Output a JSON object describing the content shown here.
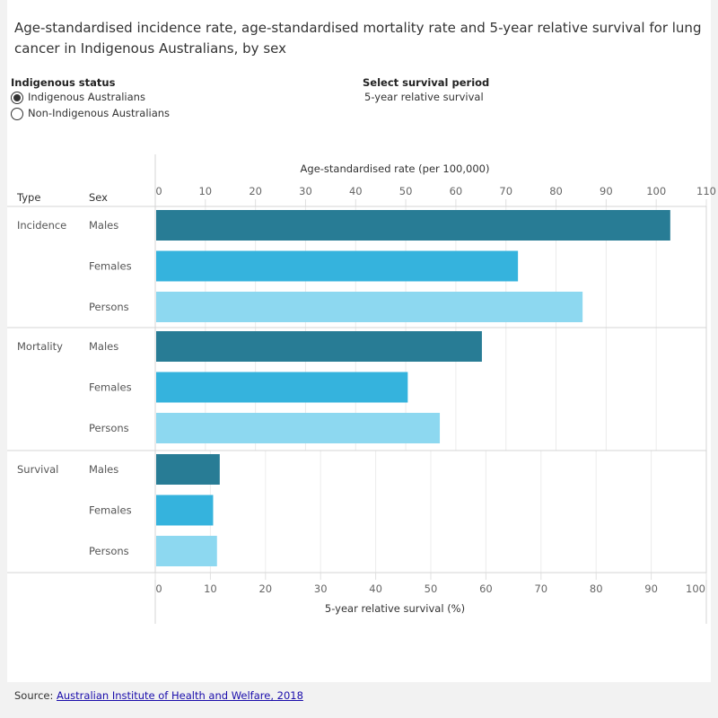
{
  "title": "Age-standardised incidence rate, age-standardised mortality rate and 5-year relative survival for lung cancer in Indigenous Australians, by sex",
  "filters": {
    "indigenous_status": {
      "label": "Indigenous status",
      "options": [
        "Indigenous Australians",
        "Non-Indigenous Australians"
      ],
      "selected": "Indigenous Australians"
    },
    "survival_period": {
      "label": "Select survival period",
      "value": "5-year relative survival"
    }
  },
  "source": {
    "prefix": "Source: ",
    "link": "Australian Institute of Health and Welfare, 2018"
  },
  "chart_data": {
    "type": "bar",
    "orientation": "horizontal",
    "row_headers": [
      "Type",
      "Sex"
    ],
    "colors": {
      "Males": "#287c95",
      "Females": "#35b3dd",
      "Persons": "#8dd8f0"
    },
    "grid": true,
    "panels": [
      {
        "type": "Incidence",
        "axis": "top",
        "categories": [
          "Males",
          "Females",
          "Persons"
        ],
        "values": [
          102.8,
          72.4,
          85.3
        ]
      },
      {
        "type": "Mortality",
        "axis": "top",
        "categories": [
          "Males",
          "Females",
          "Persons"
        ],
        "values": [
          65.2,
          50.4,
          56.8
        ]
      },
      {
        "type": "Survival",
        "axis": "bottom",
        "categories": [
          "Males",
          "Females",
          "Persons"
        ],
        "values": [
          11.7,
          10.5,
          11.2
        ]
      }
    ],
    "top_axis": {
      "label": "Age-standardised rate (per 100,000)",
      "range": [
        0,
        110
      ],
      "ticks": [
        "0",
        "10",
        "20",
        "30",
        "40",
        "50",
        "60",
        "70",
        "80",
        "90",
        "100",
        "110"
      ]
    },
    "bottom_axis": {
      "label": "5-year relative survival (%)",
      "range": [
        0,
        100
      ],
      "ticks": [
        "0",
        "10",
        "20",
        "30",
        "40",
        "50",
        "60",
        "70",
        "80",
        "90",
        "100"
      ]
    }
  }
}
